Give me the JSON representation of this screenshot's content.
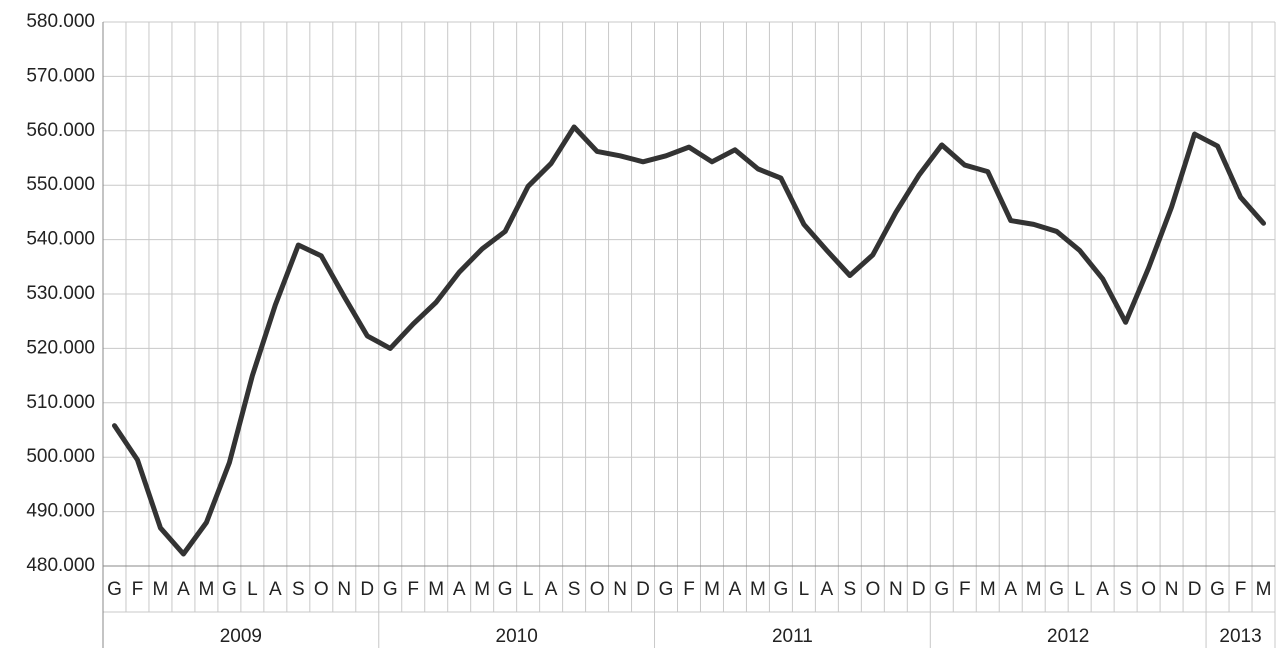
{
  "chart_data": {
    "type": "line",
    "groups": [
      {
        "name": "2009",
        "categories": [
          "G",
          "F",
          "M",
          "A",
          "M",
          "G",
          "L",
          "A",
          "S",
          "O",
          "N",
          "D"
        ]
      },
      {
        "name": "2010",
        "categories": [
          "G",
          "F",
          "M",
          "A",
          "M",
          "G",
          "L",
          "A",
          "S",
          "O",
          "N",
          "D"
        ]
      },
      {
        "name": "2011",
        "categories": [
          "G",
          "F",
          "M",
          "A",
          "M",
          "G",
          "L",
          "A",
          "S",
          "O",
          "N",
          "D"
        ]
      },
      {
        "name": "2012",
        "categories": [
          "G",
          "F",
          "M",
          "A",
          "M",
          "G",
          "L",
          "A",
          "S",
          "O",
          "N",
          "D"
        ]
      },
      {
        "name": "2013",
        "categories": [
          "G",
          "F",
          "M"
        ]
      }
    ],
    "values": [
      505800,
      499500,
      487000,
      482200,
      488000,
      499000,
      515000,
      528000,
      539000,
      537000,
      529500,
      522300,
      520000,
      524500,
      528500,
      534000,
      538300,
      541500,
      549800,
      554000,
      560700,
      556200,
      555400,
      554300,
      555400,
      557000,
      554300,
      556500,
      553000,
      551300,
      542800,
      538000,
      533400,
      537200,
      545000,
      551800,
      557400,
      553700,
      552500,
      543500,
      542800,
      541500,
      538000,
      532800,
      524800,
      534800,
      546000,
      559400,
      557200,
      547800,
      543000
    ],
    "color": "#333333",
    "ylim": [
      480000,
      580000
    ],
    "yticks": [
      {
        "value": 480000,
        "label": "480.000"
      },
      {
        "value": 490000,
        "label": "490.000"
      },
      {
        "value": 500000,
        "label": "500.000"
      },
      {
        "value": 510000,
        "label": "510.000"
      },
      {
        "value": 520000,
        "label": "520.000"
      },
      {
        "value": 530000,
        "label": "530.000"
      },
      {
        "value": 540000,
        "label": "540.000"
      },
      {
        "value": 550000,
        "label": "550.000"
      },
      {
        "value": 560000,
        "label": "560.000"
      },
      {
        "value": 570000,
        "label": "570.000"
      },
      {
        "value": 580000,
        "label": "580.000"
      }
    ],
    "grid": true
  }
}
